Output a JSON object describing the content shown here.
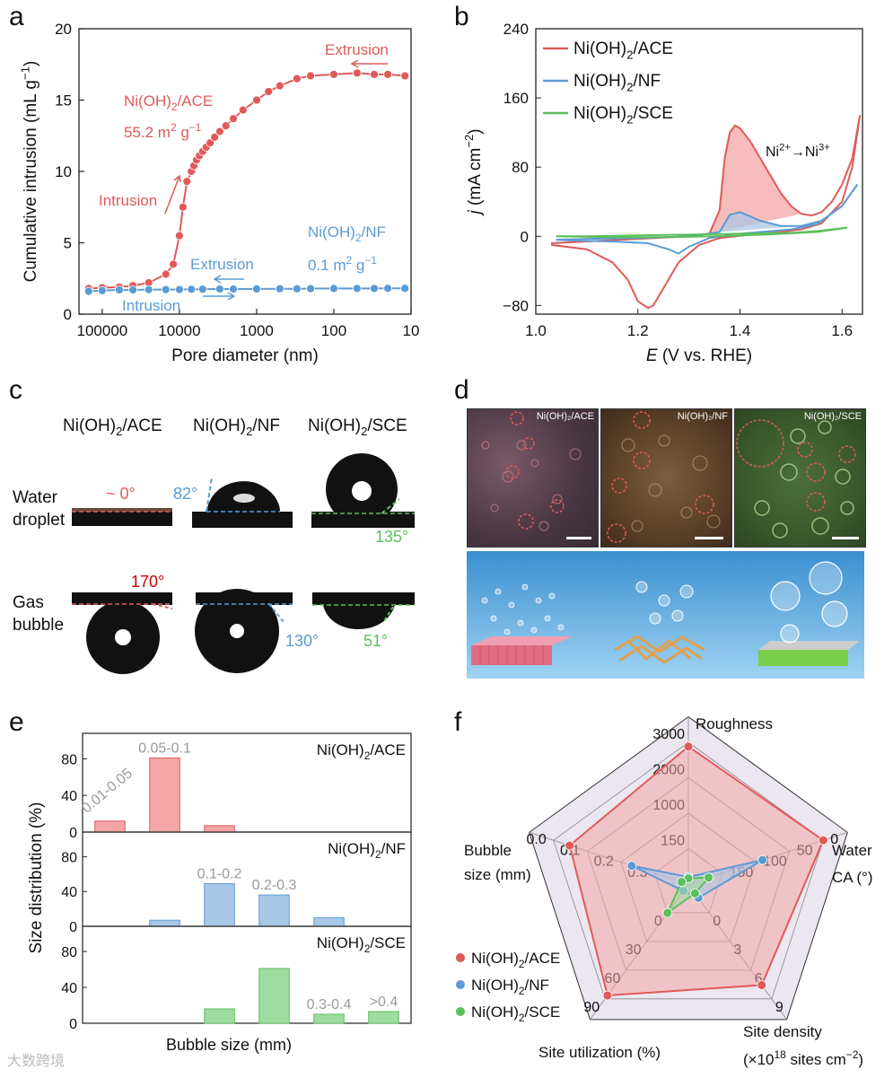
{
  "panels": {
    "a": "a",
    "b": "b",
    "c": "c",
    "d": "d",
    "e": "e",
    "f": "f"
  },
  "colors": {
    "ace": "#e05a5a",
    "nf": "#5b9bd5",
    "sce": "#5cbf5c",
    "ace_fill": "#f4a6a6",
    "nf_fill": "#a9c7e6",
    "sce_fill": "#9fdc9f"
  },
  "chart_data": [
    {
      "id": "a",
      "type": "line",
      "title": "",
      "xlabel": "Pore diameter (nm)",
      "ylabel": "Cumulative intrusion (mL g",
      "ylabel_sup": "−1",
      "ylabel_end": ")",
      "xscale": "log-reversed",
      "xlim": [
        200000,
        10
      ],
      "ylim": [
        0,
        20
      ],
      "xticks": [
        100000,
        10000,
        1000,
        100,
        10
      ],
      "xtick_labels": [
        "100000",
        "10000",
        "1000",
        "100",
        "10"
      ],
      "yticks": [
        0,
        5,
        10,
        15,
        20
      ],
      "ytick_labels": [
        "0",
        "5",
        "10",
        "15",
        "20"
      ],
      "series": [
        {
          "name": "Ni(OH)2/ACE",
          "x": [
            150000,
            100000,
            60000,
            40000,
            25000,
            15000,
            12000,
            10000,
            9000,
            8000,
            7000,
            6500,
            6000,
            5500,
            5000,
            4500,
            4000,
            3500,
            3000,
            2500,
            2000,
            1500,
            1000,
            700,
            500,
            300,
            200,
            100,
            50,
            30,
            20,
            12
          ],
          "y": [
            1.8,
            1.85,
            1.9,
            2.0,
            2.2,
            2.8,
            3.5,
            5.5,
            7.5,
            9.3,
            10.0,
            10.4,
            10.8,
            11.1,
            11.4,
            11.7,
            12.0,
            12.4,
            12.8,
            13.2,
            13.7,
            14.3,
            15.0,
            15.6,
            16.0,
            16.5,
            16.7,
            16.8,
            16.9,
            16.8,
            16.8,
            16.7
          ]
        },
        {
          "name": "Ni(OH)2/NF",
          "x": [
            150000,
            100000,
            60000,
            40000,
            25000,
            15000,
            10000,
            7000,
            5000,
            3000,
            2000,
            1000,
            500,
            300,
            200,
            100,
            50,
            30,
            20,
            12
          ],
          "y": [
            1.6,
            1.65,
            1.7,
            1.7,
            1.72,
            1.72,
            1.73,
            1.74,
            1.75,
            1.76,
            1.76,
            1.77,
            1.78,
            1.78,
            1.79,
            1.8,
            1.8,
            1.8,
            1.81,
            1.81
          ]
        }
      ],
      "annotations": {
        "ace_name": "Ni(OH)",
        "ace_name_sub": "2",
        "ace_name_end": "/ACE",
        "ace_area": "55.2 m",
        "ace_area_sup": "2",
        "ace_area_end": " g",
        "ace_area_sup2": "−1",
        "nf_name": "Ni(OH)",
        "nf_name_sub": "2",
        "nf_name_end": "/NF",
        "nf_area": "0.1 m",
        "nf_area_sup": "2",
        "nf_area_end": " g",
        "nf_area_sup2": "−1",
        "extrusion": "Extrusion",
        "intrusion": "Intrusion"
      }
    },
    {
      "id": "b",
      "type": "line",
      "xlabel": "E",
      "xlabel_end": " (V vs. RHE)",
      "ylabel": "j",
      "ylabel_end": " (mA cm",
      "ylabel_sup": "−2",
      "ylabel_close": ")",
      "xlim": [
        1.0,
        1.64
      ],
      "ylim": [
        -90,
        240
      ],
      "xticks": [
        1.0,
        1.2,
        1.4,
        1.6
      ],
      "xtick_labels": [
        "1.0",
        "1.2",
        "1.4",
        "1.6"
      ],
      "yticks": [
        -80,
        0,
        80,
        160,
        240
      ],
      "ytick_labels": [
        "−80",
        "0",
        "80",
        "160",
        "240"
      ],
      "annotation": "Ni",
      "annotation_sup": "2+",
      "annotation_mid": "→Ni",
      "annotation_sup2": "3+",
      "series": [
        {
          "name": "Ni(OH)2/ACE",
          "forward_x": [
            1.03,
            1.1,
            1.2,
            1.3,
            1.34,
            1.36,
            1.37,
            1.38,
            1.39,
            1.4,
            1.42,
            1.44,
            1.46,
            1.48,
            1.5,
            1.52,
            1.54,
            1.56,
            1.58,
            1.6,
            1.62,
            1.635
          ],
          "forward_y": [
            -8,
            -6,
            -3,
            0,
            3,
            30,
            90,
            120,
            128,
            125,
            110,
            90,
            70,
            50,
            35,
            26,
            24,
            28,
            40,
            60,
            90,
            140
          ],
          "reverse_x": [
            1.635,
            1.62,
            1.6,
            1.56,
            1.52,
            1.48,
            1.42,
            1.36,
            1.32,
            1.28,
            1.25,
            1.23,
            1.22,
            1.2,
            1.18,
            1.15,
            1.1,
            1.03
          ],
          "reverse_y": [
            140,
            80,
            40,
            15,
            8,
            5,
            2,
            -2,
            -10,
            -30,
            -60,
            -80,
            -83,
            -75,
            -50,
            -30,
            -15,
            -10
          ]
        },
        {
          "name": "Ni(OH)2/NF",
          "forward_x": [
            1.04,
            1.1,
            1.2,
            1.3,
            1.36,
            1.38,
            1.4,
            1.44,
            1.48,
            1.52,
            1.56,
            1.6,
            1.63
          ],
          "forward_y": [
            -4,
            -3,
            -2,
            0,
            5,
            25,
            28,
            18,
            12,
            12,
            18,
            35,
            60
          ],
          "reverse_x": [
            1.63,
            1.6,
            1.55,
            1.5,
            1.4,
            1.34,
            1.3,
            1.28,
            1.26,
            1.22,
            1.15,
            1.08,
            1.04
          ],
          "reverse_y": [
            60,
            35,
            14,
            8,
            3,
            -2,
            -12,
            -20,
            -15,
            -8,
            -6,
            -5,
            -4
          ]
        },
        {
          "name": "Ni(OH)2/SCE",
          "forward_x": [
            1.04,
            1.1,
            1.2,
            1.3,
            1.4,
            1.5,
            1.55,
            1.61
          ],
          "forward_y": [
            0,
            0,
            1,
            2,
            3,
            4,
            6,
            10
          ],
          "reverse_x": [
            1.61,
            1.55,
            1.45,
            1.35,
            1.25,
            1.15,
            1.04
          ],
          "reverse_y": [
            10,
            5,
            2,
            0,
            -1,
            -1,
            0
          ]
        }
      ],
      "legend": [
        {
          "name": "Ni(OH)",
          "sub": "2",
          "end": "/ACE"
        },
        {
          "name": "Ni(OH)",
          "sub": "2",
          "end": "/NF"
        },
        {
          "name": "Ni(OH)",
          "sub": "2",
          "end": "/SCE"
        }
      ]
    },
    {
      "id": "e",
      "type": "bar",
      "xlabel": "Bubble size (mm)",
      "ylabel": "Size distribution (%)",
      "ylim": [
        0,
        100
      ],
      "yticks": [
        0,
        40,
        80
      ],
      "ytick_labels": [
        "0",
        "40",
        "80"
      ],
      "categories": [
        "0.01-0.05",
        "0.05-0.1",
        "0.1-0.2",
        "0.2-0.3",
        "0.3-0.4",
        ">0.4"
      ],
      "series": [
        {
          "name": "Ni(OH)2/ACE",
          "label": "Ni(OH)",
          "sub": "2",
          "end": "/ACE",
          "values": [
            12,
            81,
            7,
            0,
            0,
            0
          ],
          "labels": [
            "0.01-0.05",
            "0.05-0.1",
            "",
            "",
            "",
            ""
          ]
        },
        {
          "name": "Ni(OH)2/NF",
          "label": "Ni(OH)",
          "sub": "2",
          "end": "/NF",
          "values": [
            0,
            7,
            49,
            36,
            10,
            0
          ],
          "labels": [
            "",
            "",
            "0.1-0.2",
            "0.2-0.3",
            "",
            ""
          ]
        },
        {
          "name": "Ni(OH)2/SCE",
          "label": "Ni(OH)",
          "sub": "2",
          "end": "/SCE",
          "values": [
            0,
            0,
            16,
            61,
            10,
            13
          ],
          "labels": [
            "",
            "",
            "",
            "",
            "0.3-0.4",
            ">0.4"
          ]
        }
      ]
    },
    {
      "id": "f",
      "type": "radar",
      "axes": [
        {
          "name": "Roughness",
          "ticks": [
            "3000",
            "2000",
            "1000",
            "150"
          ]
        },
        {
          "name": "Water",
          "name2": "CA  (°)",
          "ticks": [
            "0",
            "50",
            "100",
            "150"
          ]
        },
        {
          "name": "Site density",
          "name2": "(×10",
          "name2_sup": "18",
          "name2_end": " sites cm",
          "name2_sup2": "−2",
          "name2_close": ")",
          "ticks": [
            "9",
            "6",
            "3",
            "0"
          ]
        },
        {
          "name": "Site utilization (%)",
          "ticks": [
            "90",
            "60",
            "30",
            "0"
          ]
        },
        {
          "name": "Bubble",
          "name2": "size (mm)",
          "ticks": [
            "0.0",
            "0.1",
            "0.2",
            "0.3"
          ]
        }
      ],
      "series": [
        {
          "name": "Ni(OH)2/ACE",
          "label": "Ni(OH)",
          "sub": "2",
          "end": "/ACE",
          "values": [
            0.97,
            1.0,
            0.88,
            0.97,
            0.88
          ]
        },
        {
          "name": "Ni(OH)2/NF",
          "label": "Ni(OH)",
          "sub": "2",
          "end": "/NF",
          "values": [
            0.05,
            0.55,
            0.12,
            0.06,
            0.42
          ]
        },
        {
          "name": "Ni(OH)2/SCE",
          "label": "Ni(OH)",
          "sub": "2",
          "end": "/SCE",
          "values": [
            0.04,
            0.15,
            0.08,
            0.25,
            0.05
          ]
        }
      ]
    }
  ],
  "panel_c": {
    "col_ace": "Ni(OH)",
    "col_ace_sub": "2",
    "col_ace_end": "/ACE",
    "col_nf": "Ni(OH)",
    "col_nf_sub": "2",
    "col_nf_end": "/NF",
    "col_sce": "Ni(OH)",
    "col_sce_sub": "2",
    "col_sce_end": "/SCE",
    "row_water_1": "Water",
    "row_water_2": "droplet",
    "row_gas_1": "Gas",
    "row_gas_2": "bubble",
    "water_ace": "~ 0°",
    "water_nf": "82°",
    "water_sce": "135°",
    "gas_ace": "170°",
    "gas_nf": "130°",
    "gas_sce": "51°"
  },
  "panel_d": {
    "label_ace": "Ni(OH)₂/ACE",
    "label_nf": "Ni(OH)₂/NF",
    "label_sce": "Ni(OH)₂/SCE"
  },
  "watermark": "大数跨境"
}
